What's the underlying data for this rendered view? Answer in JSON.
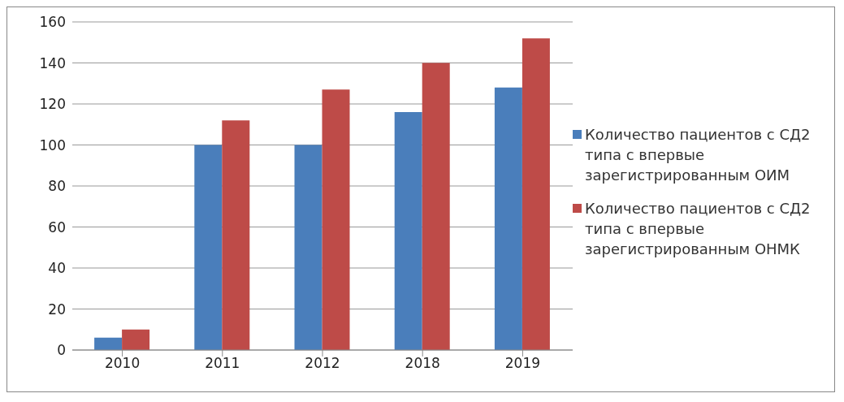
{
  "chart_data": {
    "type": "bar",
    "categories": [
      "2010",
      "2011",
      "2012",
      "2018",
      "2019"
    ],
    "series": [
      {
        "name": "Количество пациентов с СД2 типа с впервые зарегистрированным ОИМ",
        "color": "#4a7ebb",
        "values": [
          6,
          100,
          100,
          116,
          128
        ]
      },
      {
        "name": "Количество пациентов с СД2 типа с впервые зарегистрированным ОНМК",
        "color": "#be4b48",
        "values": [
          10,
          112,
          127,
          140,
          152
        ]
      }
    ],
    "ylim": [
      0,
      160
    ],
    "yticks": [
      0,
      20,
      40,
      60,
      80,
      100,
      120,
      140,
      160
    ],
    "grid": "y",
    "legend": "right"
  }
}
